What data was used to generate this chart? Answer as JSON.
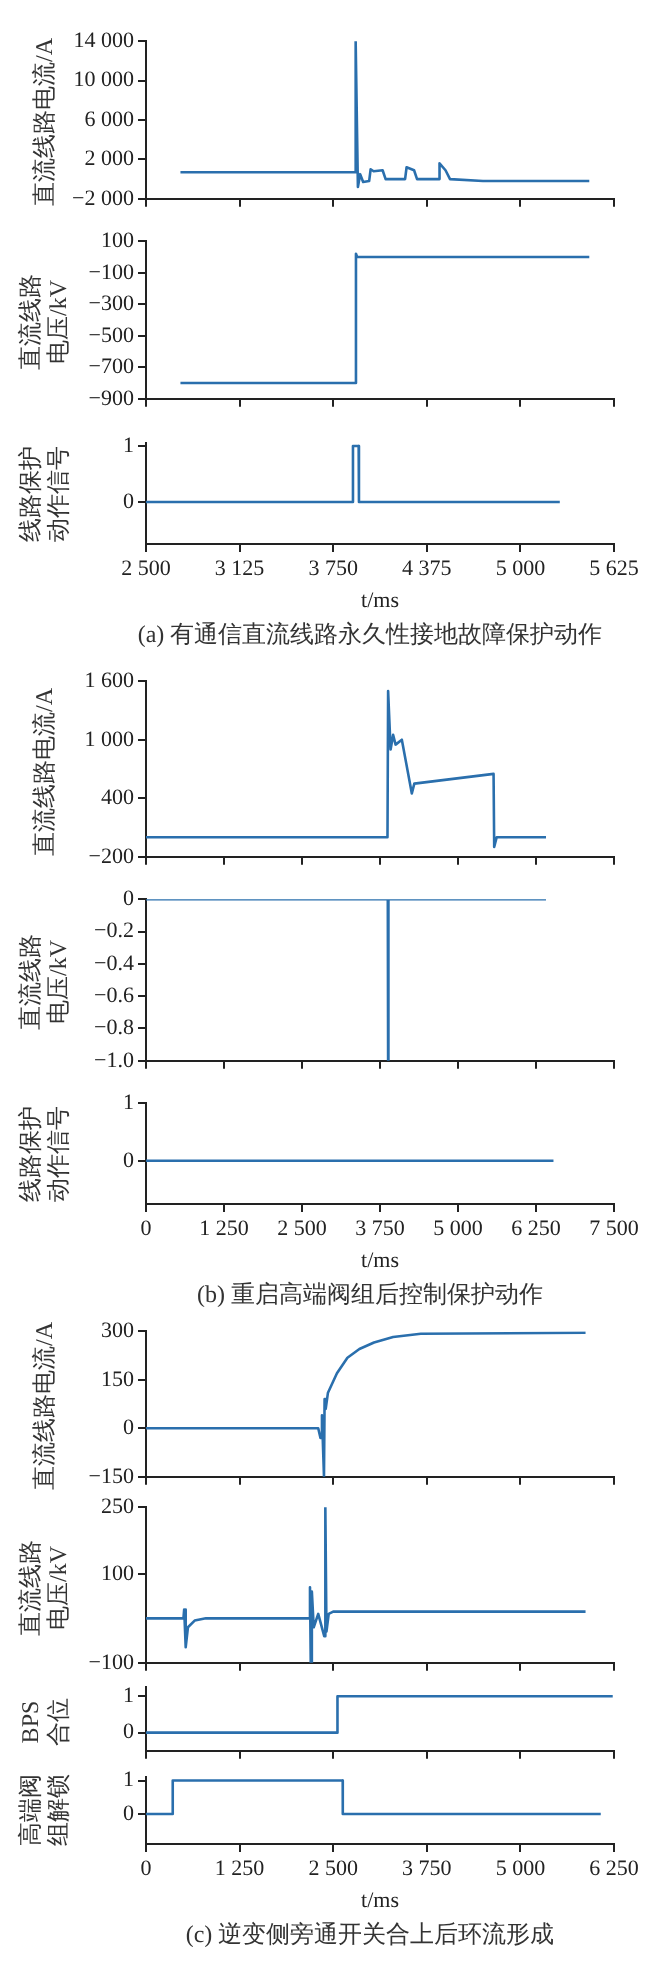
{
  "chart_data": [
    {
      "type": "line",
      "ylabel": "直流线路电流/A",
      "tick_labels": "y",
      "xlim": [
        2500,
        5625
      ],
      "xticks": [
        2500,
        3125,
        3750,
        4375,
        5000,
        5625
      ],
      "ylim": [
        -2000,
        14000
      ],
      "yticks": [
        {
          "value": -2000,
          "label": "−2 000"
        },
        {
          "value": 2000,
          "label": "2 000"
        },
        {
          "value": 6000,
          "label": "6 000"
        },
        {
          "value": 10000,
          "label": "10 000"
        },
        {
          "value": 14000,
          "label": "14 000"
        }
      ],
      "series": [
        {
          "color": "#2a6fad",
          "x": [
            2730,
            3895,
            3900,
            3915,
            3930,
            3950,
            3990,
            4000,
            4020,
            4080,
            4100,
            4230,
            4240,
            4290,
            4310,
            4450,
            4460,
            4500,
            4530,
            4750,
            5460
          ],
          "values": [
            700,
            700,
            14000,
            -800,
            500,
            -300,
            -200,
            1000,
            800,
            900,
            0,
            0,
            1200,
            900,
            0,
            0,
            1600,
            900,
            0,
            -200,
            -200
          ]
        }
      ]
    },
    {
      "type": "line",
      "ylabel": "直流线路电压/kV",
      "tick_labels": "y",
      "xlim": [
        2500,
        5625
      ],
      "xticks": [
        2500,
        3125,
        3750,
        4375,
        5000,
        5625
      ],
      "ylim": [
        -900,
        100
      ],
      "yticks": [
        {
          "value": -900,
          "label": "−900"
        },
        {
          "value": -700,
          "label": "−700"
        },
        {
          "value": -500,
          "label": "−500"
        },
        {
          "value": -300,
          "label": "−300"
        },
        {
          "value": -100,
          "label": "−100"
        },
        100
      ],
      "series": [
        {
          "color": "#2a6fad",
          "x": [
            2730,
            3900,
            3902,
            3910,
            5460
          ],
          "values": [
            -800,
            -800,
            20,
            0,
            0
          ]
        }
      ]
    },
    {
      "type": "line",
      "ylabel": "线路保护动作信号",
      "xlabel": "t/ms",
      "annotations": [
        "(a) 有通信直流线路永久性接地故障保护动作"
      ],
      "xlim": [
        2500,
        5625
      ],
      "xticks": [
        {
          "value": 2500,
          "label": "2 500"
        },
        {
          "value": 3125,
          "label": "3 125"
        },
        {
          "value": 3750,
          "label": "3 750"
        },
        {
          "value": 4375,
          "label": "4 375"
        },
        {
          "value": 5000,
          "label": "5 000"
        },
        {
          "value": 5625,
          "label": "5 625"
        }
      ],
      "ylim": [
        -0.75,
        1.05
      ],
      "yticks": [
        0,
        1
      ],
      "series": [
        {
          "color": "#2a6fad",
          "x": [
            2500,
            3880,
            3882,
            3920,
            3922,
            5263
          ],
          "values": [
            0,
            0,
            1,
            1,
            0,
            0
          ]
        }
      ]
    },
    {
      "type": "line",
      "ylabel": "直流线路电流/A",
      "tick_labels": "y",
      "xlim": [
        0,
        7500
      ],
      "xticks": [
        0,
        1250,
        2500,
        3750,
        5000,
        6250,
        7500
      ],
      "ylim": [
        -200,
        1600
      ],
      "yticks": [
        {
          "value": -200,
          "label": "−200"
        },
        400,
        {
          "value": 1000,
          "label": "1 000"
        },
        {
          "value": 1600,
          "label": "1 600"
        }
      ],
      "series": [
        {
          "color": "#2a6fad",
          "x": [
            0,
            3870,
            3880,
            3920,
            3960,
            4000,
            4100,
            4260,
            4300,
            5570,
            5580,
            5620,
            6410
          ],
          "values": [
            0,
            0,
            1500,
            900,
            1050,
            950,
            1000,
            450,
            550,
            650,
            -100,
            0,
            0
          ]
        }
      ]
    },
    {
      "type": "line",
      "ylabel": "直流线路电压/kV",
      "tick_labels": "y",
      "xlim": [
        0,
        7500
      ],
      "xticks": [
        0,
        1250,
        2500,
        3750,
        5000,
        6250,
        7500
      ],
      "ylim": [
        -1,
        0
      ],
      "yticks": [
        {
          "value": -1,
          "label": "−1.0"
        },
        {
          "value": -0.8,
          "label": "−0.8"
        },
        {
          "value": -0.6,
          "label": "−0.6"
        },
        {
          "value": -0.4,
          "label": "−0.4"
        },
        {
          "value": -0.2,
          "label": "−0.2"
        },
        0
      ],
      "series": [
        {
          "color": "#2a6fad",
          "x": [
            0,
            3875,
            3880,
            3885,
            6410
          ],
          "values": [
            0,
            0,
            -1,
            0,
            0
          ]
        }
      ]
    },
    {
      "type": "line",
      "ylabel": "线路保护动作信号",
      "xlabel": "t/ms",
      "annotations": [
        "(b) 重启高端阀组后控制保护动作"
      ],
      "xlim": [
        0,
        7500
      ],
      "xticks": [
        0,
        {
          "value": 1250,
          "label": "1 250"
        },
        {
          "value": 2500,
          "label": "2 500"
        },
        {
          "value": 3750,
          "label": "3 750"
        },
        {
          "value": 5000,
          "label": "5 000"
        },
        {
          "value": 6250,
          "label": "6 250"
        },
        {
          "value": 7500,
          "label": "7 500"
        }
      ],
      "ylim": [
        -0.75,
        1
      ],
      "yticks": [
        0,
        1
      ],
      "series": [
        {
          "color": "#2a6fad",
          "x": [
            0,
            6530
          ],
          "values": [
            0,
            0
          ]
        }
      ]
    },
    {
      "type": "line",
      "ylabel": "直流线路电流/A",
      "tick_labels": "y",
      "xlim": [
        0,
        6250
      ],
      "xticks": [
        0,
        1250,
        2500,
        3750,
        5000,
        6250
      ],
      "ylim": [
        -150,
        300
      ],
      "yticks": [
        {
          "value": -150,
          "label": "−150"
        },
        0,
        150,
        300
      ],
      "series": [
        {
          "color": "#2a6fad",
          "x": [
            0,
            2300,
            2330,
            2350,
            2377,
            2385,
            2400,
            2430,
            2550,
            2690,
            2850,
            3045,
            3300,
            3670,
            5870
          ],
          "values": [
            0,
            0,
            -30,
            40,
            -150,
            90,
            60,
            110,
            170,
            218,
            245,
            265,
            282,
            292,
            295
          ]
        }
      ]
    },
    {
      "type": "line",
      "ylabel": "直流线路电压/kV",
      "tick_labels": "y",
      "xlim": [
        0,
        6250
      ],
      "xticks": [
        0,
        1250,
        2500,
        3750,
        5000,
        6250
      ],
      "ylim": [
        -100,
        250
      ],
      "yticks": [
        {
          "value": -100,
          "label": "−100"
        },
        100,
        250
      ],
      "series": [
        {
          "color": "#2a6fad",
          "x": [
            0,
            500,
            510,
            530,
            560,
            650,
            800,
            2180,
            2190,
            2200,
            2215,
            2240,
            2300,
            2380,
            2395,
            2410,
            2440,
            2500,
            5870
          ],
          "values": [
            0,
            0,
            20,
            -65,
            -20,
            -5,
            0,
            0,
            70,
            -100,
            60,
            -20,
            10,
            -40,
            250,
            -30,
            10,
            15,
            15
          ]
        }
      ]
    },
    {
      "type": "line",
      "ylabel": "BPS合位",
      "tick_labels": "y",
      "xlim": [
        0,
        6250
      ],
      "xticks": [
        0,
        1250,
        2500,
        3750,
        5000,
        6250
      ],
      "ylim": [
        -0.5,
        1.25
      ],
      "yticks": [
        0,
        1
      ],
      "series": [
        {
          "color": "#2a6fad",
          "x": [
            0,
            2556,
            2557,
            6233
          ],
          "values": [
            0,
            0,
            1,
            1
          ]
        }
      ]
    },
    {
      "type": "line",
      "ylabel": "高端阀组解锁",
      "xlabel": "t/ms",
      "annotations": [
        "(c) 逆变侧旁通开关合上后环流形成"
      ],
      "xlim": [
        0,
        6250
      ],
      "xticks": [
        0,
        {
          "value": 1250,
          "label": "1 250"
        },
        {
          "value": 2500,
          "label": "2 500"
        },
        {
          "value": 3750,
          "label": "3 750"
        },
        {
          "value": 5000,
          "label": "5 000"
        },
        {
          "value": 6250,
          "label": "6 250"
        }
      ],
      "ylim": [
        -0.9,
        1.1
      ],
      "yticks": [
        0,
        1
      ],
      "series": [
        {
          "color": "#2a6fad",
          "x": [
            0,
            356,
            357,
            2627,
            2628,
            6073
          ],
          "values": [
            0,
            0,
            1,
            1,
            0,
            0
          ]
        }
      ]
    }
  ]
}
